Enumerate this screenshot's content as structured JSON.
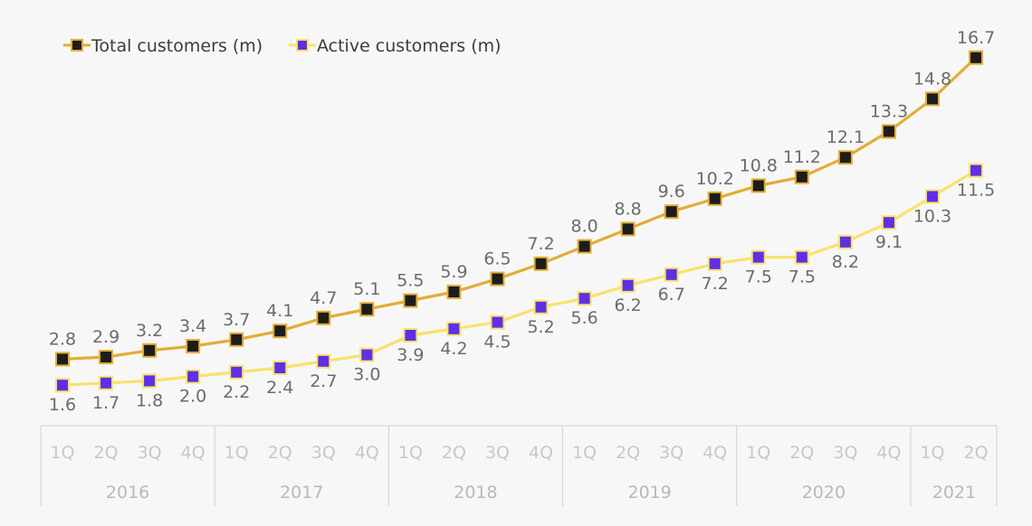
{
  "colors": {
    "background": "#f7f7f7",
    "total_line": "#e2ad35",
    "total_marker_fill": "#1c1c1c",
    "active_line": "#f6e36a",
    "active_marker_fill": "#5f2fe6",
    "label_text": "#6b6b6b",
    "axis_text": "#c8c8c8",
    "axis_line": "#d2d2d2"
  },
  "chart_data": {
    "type": "line",
    "title": "",
    "xlabel": "",
    "ylabel": "",
    "grid": false,
    "legend_position": "top-left",
    "quarters": [
      "1Q",
      "2Q",
      "3Q",
      "4Q",
      "1Q",
      "2Q",
      "3Q",
      "4Q",
      "1Q",
      "2Q",
      "3Q",
      "4Q",
      "1Q",
      "2Q",
      "3Q",
      "4Q",
      "1Q",
      "2Q",
      "3Q",
      "4Q",
      "1Q",
      "2Q"
    ],
    "years": [
      {
        "label": "2016",
        "quarters": 4
      },
      {
        "label": "2017",
        "quarters": 4
      },
      {
        "label": "2018",
        "quarters": 4
      },
      {
        "label": "2019",
        "quarters": 4
      },
      {
        "label": "2020",
        "quarters": 4
      },
      {
        "label": "2021",
        "quarters": 2
      }
    ],
    "series": [
      {
        "name": "Total customers (m)",
        "values": [
          2.8,
          2.9,
          3.2,
          3.4,
          3.7,
          4.1,
          4.7,
          5.1,
          5.5,
          5.9,
          6.5,
          7.2,
          8.0,
          8.8,
          9.6,
          10.2,
          10.8,
          11.2,
          12.1,
          13.3,
          14.8,
          16.7
        ],
        "labels": [
          "2.8",
          "2.9",
          "3.2",
          "3.4",
          "3.7",
          "4.1",
          "4.7",
          "5.1",
          "5.5",
          "5.9",
          "6.5",
          "7.2",
          "8.0",
          "8.8",
          "9.6",
          "10.2",
          "10.8",
          "11.2",
          "12.1",
          "13.3",
          "14.8",
          "16.7"
        ],
        "label_position": "above"
      },
      {
        "name": "Active customers (m)",
        "values": [
          1.6,
          1.7,
          1.8,
          2.0,
          2.2,
          2.4,
          2.7,
          3.0,
          3.9,
          4.2,
          4.5,
          5.2,
          5.6,
          6.2,
          6.7,
          7.2,
          7.5,
          7.5,
          8.2,
          9.1,
          10.3,
          11.5
        ],
        "labels": [
          "1.6",
          "1.7",
          "1.8",
          "2.0",
          "2.2",
          "2.4",
          "2.7",
          "3.0",
          "3.9",
          "4.2",
          "4.5",
          "5.2",
          "5.6",
          "6.2",
          "6.7",
          "7.2",
          "7.5",
          "7.5",
          "8.2",
          "9.1",
          "10.3",
          "11.5"
        ],
        "label_position": "below"
      }
    ]
  }
}
